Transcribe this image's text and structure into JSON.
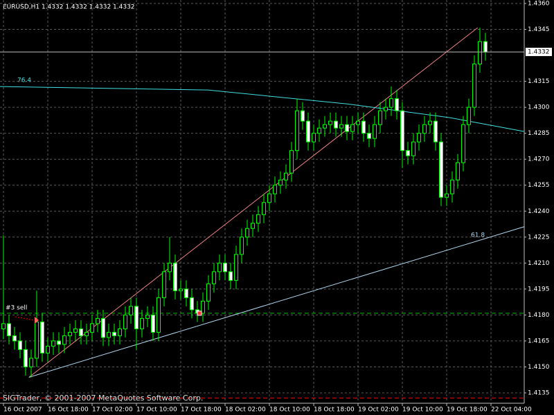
{
  "chart_data": {
    "type": "candlestick",
    "title": "EURUSD,H1 1.4332 1.4332 1.4332 1.4332",
    "footer": "SIGTrader, © 2001-2007 MetaQuotes Software Corp.",
    "open": [
      1.4172,
      1.4175,
      1.4168,
      1.4165,
      1.416,
      1.415,
      1.4155,
      1.4176,
      1.4158,
      1.4162,
      1.4165,
      1.4163,
      1.4168,
      1.417,
      1.4172,
      1.4168,
      1.417,
      1.4175,
      1.4178,
      1.4167,
      1.417,
      1.4168,
      1.4172,
      1.418,
      1.4185,
      1.4172,
      1.4178,
      1.418,
      1.417,
      1.419,
      1.4205,
      1.421,
      1.4194,
      1.4195,
      1.419,
      1.4183,
      1.4181,
      1.4188,
      1.4198,
      1.4205,
      1.421,
      1.4205,
      1.42,
      1.4215,
      1.4225,
      1.423,
      1.4233,
      1.4238,
      1.4245,
      1.425,
      1.4255,
      1.4258,
      1.4262,
      1.4275,
      1.4298,
      1.4292,
      1.428,
      1.4285,
      1.4288,
      1.429,
      1.4292,
      1.4288,
      1.429,
      1.4286,
      1.429,
      1.4292,
      1.4285,
      1.4282,
      1.429,
      1.4298,
      1.43,
      1.4305,
      1.4298,
      1.4275,
      1.4272,
      1.428,
      1.4285,
      1.429,
      1.4292,
      1.428,
      1.4248,
      1.425,
      1.4258,
      1.4268,
      1.429,
      1.43,
      1.4325,
      1.4338
    ],
    "high": [
      1.4226,
      1.418,
      1.4173,
      1.417,
      1.4165,
      1.416,
      1.4194,
      1.4181,
      1.4167,
      1.417,
      1.417,
      1.4173,
      1.4175,
      1.4177,
      1.4177,
      1.4175,
      1.418,
      1.4183,
      1.4183,
      1.4175,
      1.4175,
      1.4177,
      1.4185,
      1.419,
      1.419,
      1.4183,
      1.4185,
      1.4185,
      1.4195,
      1.421,
      1.4225,
      1.4215,
      1.42,
      1.42,
      1.4195,
      1.4188,
      1.4193,
      1.4203,
      1.421,
      1.4215,
      1.4215,
      1.421,
      1.422,
      1.423,
      1.4235,
      1.4238,
      1.4243,
      1.425,
      1.4255,
      1.426,
      1.4263,
      1.4267,
      1.428,
      1.4305,
      1.4303,
      1.4297,
      1.429,
      1.4293,
      1.4295,
      1.4297,
      1.4297,
      1.4295,
      1.4295,
      1.4295,
      1.4297,
      1.4297,
      1.429,
      1.4295,
      1.4303,
      1.4305,
      1.4312,
      1.431,
      1.4303,
      1.428,
      1.4285,
      1.429,
      1.4295,
      1.4297,
      1.4297,
      1.4285,
      1.4255,
      1.4263,
      1.4273,
      1.4295,
      1.4305,
      1.433,
      1.4346,
      1.4343
    ],
    "low": [
      1.4166,
      1.4163,
      1.416,
      1.4155,
      1.4145,
      1.4144,
      1.415,
      1.4153,
      1.4153,
      1.4157,
      1.4158,
      1.4158,
      1.4163,
      1.4165,
      1.4163,
      1.4163,
      1.4165,
      1.417,
      1.4162,
      1.4162,
      1.4163,
      1.4163,
      1.4167,
      1.4175,
      1.416,
      1.4167,
      1.4173,
      1.4165,
      1.4165,
      1.4185,
      1.42,
      1.4189,
      1.4189,
      1.4185,
      1.4178,
      1.4176,
      1.4176,
      1.4183,
      1.4193,
      1.42,
      1.42,
      1.4195,
      1.4195,
      1.421,
      1.422,
      1.4225,
      1.4228,
      1.4233,
      1.424,
      1.4245,
      1.425,
      1.4253,
      1.4257,
      1.427,
      1.4287,
      1.4275,
      1.4275,
      1.428,
      1.4283,
      1.4285,
      1.4283,
      1.4283,
      1.4281,
      1.4281,
      1.4285,
      1.428,
      1.4277,
      1.4277,
      1.4285,
      1.4293,
      1.4295,
      1.4293,
      1.4265,
      1.4267,
      1.4267,
      1.4275,
      1.428,
      1.4285,
      1.4275,
      1.4243,
      1.4243,
      1.4245,
      1.4253,
      1.4263,
      1.4285,
      1.4295,
      1.432,
      1.4327
    ],
    "close": [
      1.4175,
      1.4168,
      1.4165,
      1.416,
      1.415,
      1.4155,
      1.4176,
      1.4158,
      1.4162,
      1.4165,
      1.4163,
      1.4168,
      1.417,
      1.4172,
      1.4168,
      1.417,
      1.4175,
      1.4178,
      1.4167,
      1.417,
      1.4168,
      1.4172,
      1.418,
      1.4185,
      1.4172,
      1.4178,
      1.418,
      1.417,
      1.419,
      1.4205,
      1.421,
      1.4194,
      1.4195,
      1.419,
      1.4183,
      1.4181,
      1.4188,
      1.4198,
      1.4205,
      1.421,
      1.4205,
      1.42,
      1.4215,
      1.4225,
      1.423,
      1.4233,
      1.4238,
      1.4245,
      1.425,
      1.4255,
      1.4258,
      1.4262,
      1.4275,
      1.4298,
      1.4292,
      1.428,
      1.4285,
      1.4288,
      1.429,
      1.4292,
      1.4288,
      1.429,
      1.4286,
      1.429,
      1.4292,
      1.4285,
      1.4282,
      1.429,
      1.4298,
      1.43,
      1.4305,
      1.4298,
      1.4275,
      1.4272,
      1.428,
      1.4285,
      1.429,
      1.4292,
      1.428,
      1.4248,
      1.425,
      1.4258,
      1.4268,
      1.429,
      1.43,
      1.4325,
      1.4338,
      1.4332
    ],
    "bull_color": "#000000",
    "bear_color": "#ffffff",
    "wick_color": "#00ff00",
    "xlim": [
      -0.625,
      94
    ],
    "xticks": [
      {
        "value": 0,
        "label": "16 Oct 2007"
      },
      {
        "value": 8,
        "label": "16 Oct 18:00"
      },
      {
        "value": 16,
        "label": "17 Oct 02:00"
      },
      {
        "value": 24,
        "label": "17 Oct 10:00"
      },
      {
        "value": 32,
        "label": "17 Oct 18:00"
      },
      {
        "value": 40,
        "label": "18 Oct 02:00"
      },
      {
        "value": 48,
        "label": "18 Oct 10:00"
      },
      {
        "value": 56,
        "label": "18 Oct 18:00"
      },
      {
        "value": 64,
        "label": "19 Oct 02:00"
      },
      {
        "value": 72,
        "label": "19 Oct 10:00"
      },
      {
        "value": 80,
        "label": "19 Oct 18:00"
      },
      {
        "value": 88,
        "label": "22 Oct 04:00"
      }
    ],
    "ylim": [
      1.4129,
      1.4362
    ],
    "yticks": [
      {
        "value": 1.436,
        "label": "1.4360"
      },
      1.4345,
      1.4315,
      {
        "value": 1.43,
        "label": "1.4300"
      },
      1.4285,
      {
        "value": 1.427,
        "label": "1.4270"
      },
      1.4255,
      {
        "value": 1.424,
        "label": "1.4240"
      },
      1.4225,
      {
        "value": 1.421,
        "label": "1.4210"
      },
      1.4195,
      {
        "value": 1.418,
        "label": "1.4180"
      },
      1.4165,
      {
        "value": 1.415,
        "label": "1.4150"
      },
      1.4135
    ],
    "grid": true,
    "current_price": 1.4332,
    "levels": [
      {
        "value": 1.4181,
        "color": "#00c000"
      },
      {
        "value": 1.4132,
        "color": "#ff0000"
      }
    ],
    "trendlines": [
      {
        "color": "#f08080",
        "x": [
          4.6,
          85.6
        ],
        "y": [
          1.4144,
          1.4346
        ]
      },
      {
        "label": "61.8",
        "color": "#b0d8f0",
        "x": [
          4.6,
          94
        ],
        "y": [
          1.4144,
          1.4231
        ]
      },
      {
        "label": "76.4",
        "color": "#40e0e0",
        "x": [
          -0.625,
          36.9,
          61.9,
          80.6,
          94
        ],
        "y": [
          1.4312,
          1.431,
          1.4302,
          1.4294,
          1.4286
        ]
      }
    ],
    "annotation": "#3 sell"
  }
}
